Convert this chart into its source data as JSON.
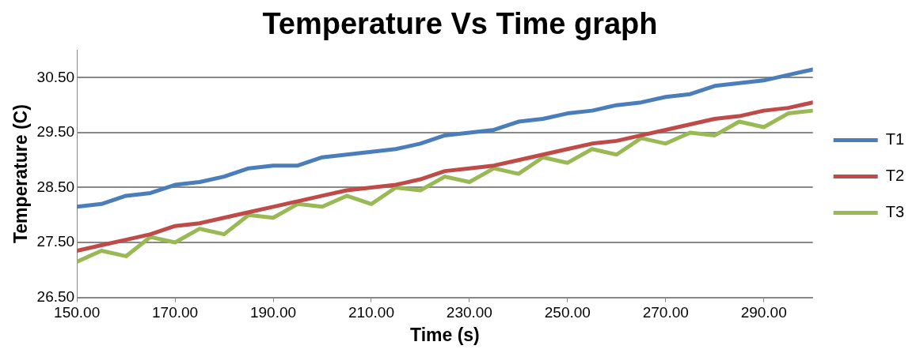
{
  "chart_data": {
    "type": "line",
    "title": "Temperature Vs Time graph",
    "xlabel": "Time (s)",
    "ylabel": "Temperature (C)",
    "x": [
      150,
      155,
      160,
      165,
      170,
      175,
      180,
      185,
      190,
      195,
      200,
      205,
      210,
      215,
      220,
      225,
      230,
      235,
      240,
      245,
      250,
      255,
      260,
      265,
      270,
      275,
      280,
      285,
      290,
      295,
      300
    ],
    "series": [
      {
        "name": "T1",
        "color": "#4a7ebb",
        "values": [
          28.15,
          28.2,
          28.35,
          28.4,
          28.55,
          28.6,
          28.7,
          28.85,
          28.9,
          28.9,
          29.05,
          29.1,
          29.15,
          29.2,
          29.3,
          29.45,
          29.5,
          29.55,
          29.7,
          29.75,
          29.85,
          29.9,
          30.0,
          30.05,
          30.15,
          30.2,
          30.35,
          30.4,
          30.45,
          30.55,
          30.65
        ]
      },
      {
        "name": "T2",
        "color": "#be4b48",
        "values": [
          27.35,
          27.45,
          27.55,
          27.65,
          27.8,
          27.85,
          27.95,
          28.05,
          28.15,
          28.25,
          28.35,
          28.45,
          28.5,
          28.55,
          28.65,
          28.8,
          28.85,
          28.9,
          29.0,
          29.1,
          29.2,
          29.3,
          29.35,
          29.45,
          29.55,
          29.65,
          29.75,
          29.8,
          29.9,
          29.95,
          30.05
        ]
      },
      {
        "name": "T3",
        "color": "#98b954",
        "values": [
          27.15,
          27.35,
          27.25,
          27.6,
          27.5,
          27.75,
          27.65,
          28.0,
          27.95,
          28.2,
          28.15,
          28.35,
          28.2,
          28.5,
          28.45,
          28.7,
          28.6,
          28.85,
          28.75,
          29.05,
          28.95,
          29.2,
          29.1,
          29.4,
          29.3,
          29.5,
          29.45,
          29.7,
          29.6,
          29.85,
          29.9
        ]
      }
    ],
    "xlim": [
      150,
      300
    ],
    "xticks": [
      {
        "value": 150,
        "label": "150.00"
      },
      {
        "value": 170,
        "label": "170.00"
      },
      {
        "value": 190,
        "label": "190.00"
      },
      {
        "value": 210,
        "label": "210.00"
      },
      {
        "value": 230,
        "label": "230.00"
      },
      {
        "value": 250,
        "label": "250.00"
      },
      {
        "value": 270,
        "label": "270.00"
      },
      {
        "value": 290,
        "label": "290.00"
      }
    ],
    "ylim": [
      26.5,
      31
    ],
    "yticks": [
      {
        "value": 26.5,
        "label": "26.50"
      },
      {
        "value": 27.5,
        "label": "27.50"
      },
      {
        "value": 28.5,
        "label": "28.50"
      },
      {
        "value": 29.5,
        "label": "29.50"
      },
      {
        "value": 30.5,
        "label": "30.50"
      }
    ],
    "grid": "y",
    "legend": "right",
    "marker": "none",
    "line_style": "solid"
  }
}
